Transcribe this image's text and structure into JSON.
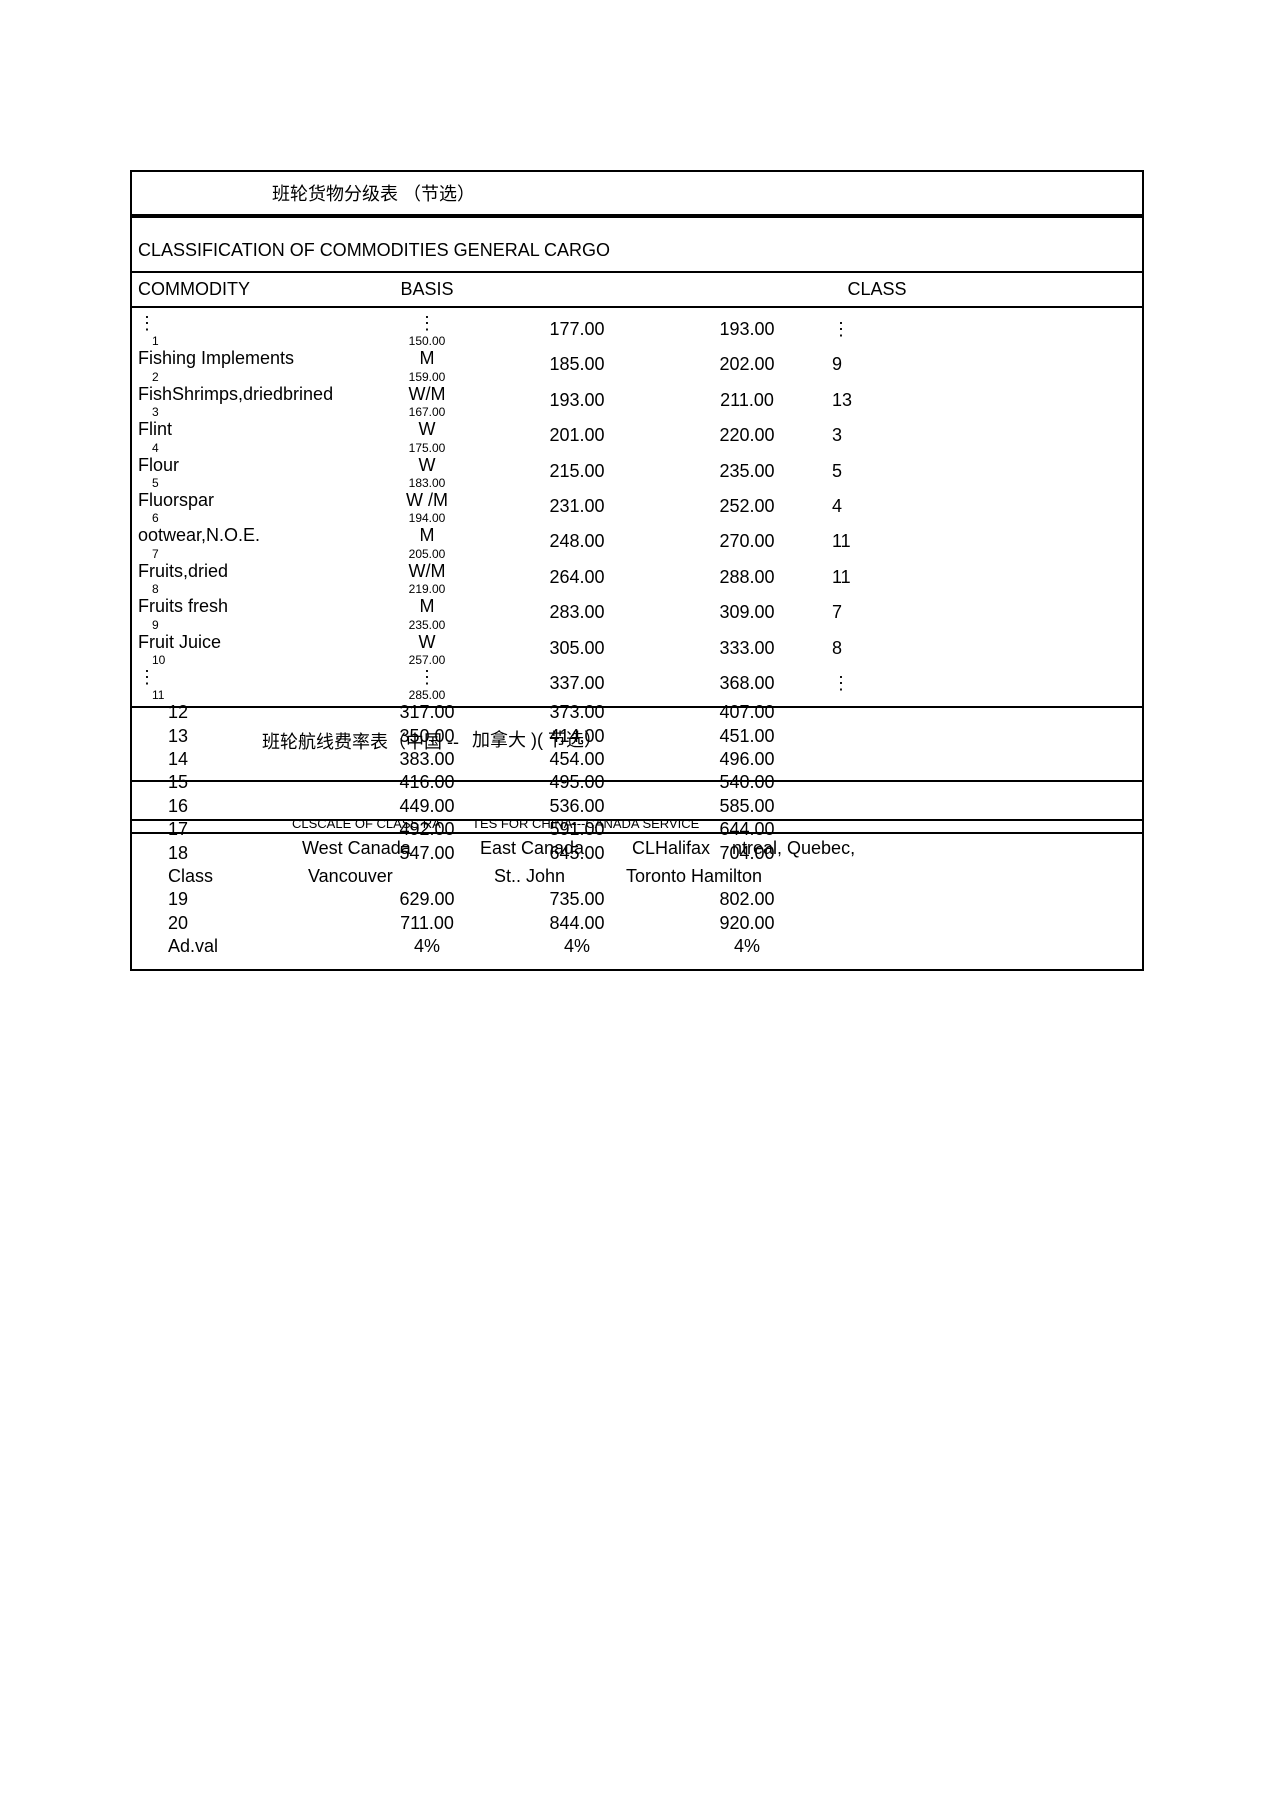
{
  "title1": "班轮货物分级表 （节选）",
  "section_title": "CLASSIFICATION OF COMMODITIES GENERAL CARGO",
  "headers": {
    "commodity": "COMMODITY",
    "basis": "BASIS",
    "class": "CLASS"
  },
  "rows": [
    {
      "c1": "⋮",
      "c1b": "1",
      "c2": "⋮",
      "c2b": "150.00",
      "c3": "177.00",
      "c4": "193.00",
      "c5": "⋮"
    },
    {
      "c1": "Fishing Implements",
      "c1b": "2",
      "c2": "M",
      "c2b": "159.00",
      "c3": "185.00",
      "c4": "202.00",
      "c5": "9"
    },
    {
      "c1": "FishShrimps,driedbrined",
      "c1b": "3",
      "c2": "W/M",
      "c2b": "167.00",
      "c3": "193.00",
      "c4": "211.00",
      "c5": "13"
    },
    {
      "c1": "Flint",
      "c1b": "4",
      "c2": "W",
      "c2b": "175.00",
      "c3": "201.00",
      "c4": "220.00",
      "c5": "3"
    },
    {
      "c1": "Flour",
      "c1b": "5",
      "c2": "W",
      "c2b": "183.00",
      "c3": "215.00",
      "c4": "235.00",
      "c5": "5"
    },
    {
      "c1": "Fluorspar",
      "c1b": "6",
      "c2": "W /M",
      "c2b": "194.00",
      "c3": "231.00",
      "c4": "252.00",
      "c5": "4"
    },
    {
      "c1": "ootwear,N.O.E.",
      "c1b": "7",
      "c2": "M",
      "c2b": "205.00",
      "c3": "248.00",
      "c4": "270.00",
      "c5": "11"
    },
    {
      "c1": "Fruits,dried",
      "c1b": "8",
      "c2": "W/M",
      "c2b": "219.00",
      "c3": "264.00",
      "c4": "288.00",
      "c5": "11"
    },
    {
      "c1": "Fruits fresh",
      "c1b": "9",
      "c2": "M",
      "c2b": "235.00",
      "c3": "283.00",
      "c4": "309.00",
      "c5": "7"
    },
    {
      "c1": "Fruit Juice",
      "c1b": "10",
      "c2": "W",
      "c2b": "257.00",
      "c3": "305.00",
      "c4": "333.00",
      "c5": "8"
    },
    {
      "c1": "⋮",
      "c1b": "11",
      "c2": "⋮",
      "c2b": "285.00",
      "c3": "337.00",
      "c4": "368.00",
      "c5": "⋮"
    },
    {
      "c1": "",
      "c1b": "12",
      "c2": "",
      "c2b": "317.00",
      "c3": "373.00",
      "c4": "407.00",
      "c5": ""
    },
    {
      "c1": "",
      "c1b": "13",
      "c2": "",
      "c2b": "350.00",
      "c3": "414.00",
      "c4": "451.00",
      "c5": ""
    },
    {
      "c1": "",
      "c1b": "14",
      "c2": "",
      "c2b": "383.00",
      "c3": "454.00",
      "c4": "496.00",
      "c5": ""
    },
    {
      "c1": "",
      "c1b": "15",
      "c2": "",
      "c2b": "416.00",
      "c3": "495.00",
      "c4": "540.00",
      "c5": ""
    },
    {
      "c1": "",
      "c1b": "16",
      "c2": "",
      "c2b": "449.00",
      "c3": "536.00",
      "c4": "585.00",
      "c5": ""
    },
    {
      "c1": "",
      "c1b": "17",
      "c2": "",
      "c2b": "492.00",
      "c3": "591.00",
      "c4": "644.00",
      "c5": ""
    },
    {
      "c1": "",
      "c1b": "18",
      "c2": "",
      "c2b": "547.00",
      "c3": "645.00",
      "c4": "704.00",
      "c5": ""
    },
    {
      "c1": "",
      "c1b": "Class",
      "c2": "",
      "c2b": "",
      "c3": "",
      "c4": "",
      "c5": ""
    },
    {
      "c1": "",
      "c1b": "19",
      "c2": "",
      "c2b": "629.00",
      "c3": "735.00",
      "c4": "802.00",
      "c5": ""
    },
    {
      "c1": "",
      "c1b": "20",
      "c2": "",
      "c2b": "711.00",
      "c3": "844.00",
      "c4": "920.00",
      "c5": ""
    },
    {
      "c1": "",
      "c1b": "Ad.val",
      "c2": "",
      "c2b": "4%",
      "c3": "4%",
      "c4": "4%",
      "c5": ""
    }
  ],
  "overlay": {
    "title2": "班轮航线费率表（中国 --",
    "title2b": "加拿大 )( 节选）",
    "scale_line": "CLSCALE OF CLASS RA",
    "scale_line_b": "TES FOR CHINA---CANADA SERVICE",
    "west": "West Canada",
    "east": "East Canada",
    "halifax": "CLHalifax",
    "ntreal": "ntreal, Quebec,",
    "vancouver": "Vancouver",
    "stjohn": "St.. John",
    "toronto": "Toronto Hamilton"
  }
}
